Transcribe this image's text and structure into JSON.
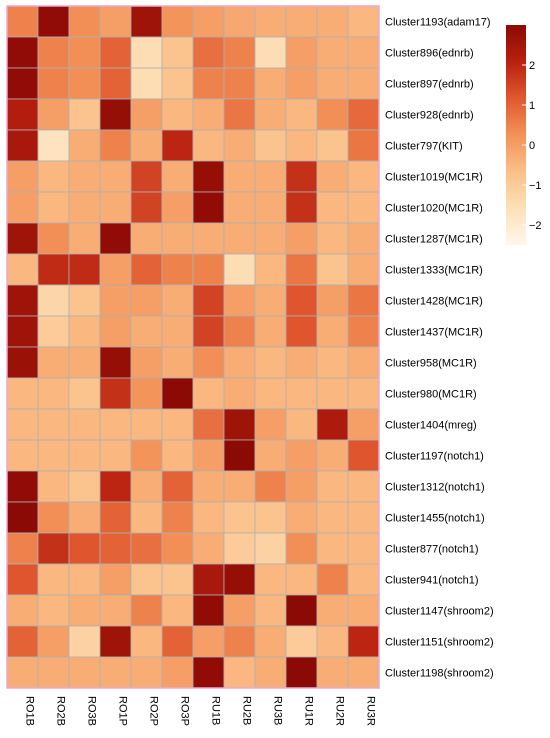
{
  "chart_data": {
    "type": "heatmap",
    "columns": [
      "RO1B",
      "RO2B",
      "RO3B",
      "RO1P",
      "RO2P",
      "RO3P",
      "RU1B",
      "RU2B",
      "RU3B",
      "RU1R",
      "RU2R",
      "RU3R"
    ],
    "rows": [
      "Cluster1193(adam17)",
      "Cluster896(ednrb)",
      "Cluster897(ednrb)",
      "Cluster928(ednrb)",
      "Cluster797(KIT)",
      "Cluster1019(MC1R)",
      "Cluster1020(MC1R)",
      "Cluster1287(MC1R)",
      "Cluster1333(MC1R)",
      "Cluster1428(MC1R)",
      "Cluster1437(MC1R)",
      "Cluster958(MC1R)",
      "Cluster980(MC1R)",
      "Cluster1404(mreg)",
      "Cluster1197(notch1)",
      "Cluster1312(notch1)",
      "Cluster1455(notch1)",
      "Cluster877(notch1)",
      "Cluster941(notch1)",
      "Cluster1147(shroom2)",
      "Cluster1151(shroom2)",
      "Cluster1198(shroom2)"
    ],
    "values": [
      [
        0.5,
        2.9,
        0.3,
        0.0,
        2.6,
        0.2,
        0.0,
        -0.2,
        -0.3,
        -0.3,
        -0.3,
        -0.5
      ],
      [
        2.9,
        0.5,
        0.3,
        1.0,
        -1.5,
        -0.8,
        0.8,
        0.5,
        -1.5,
        0.0,
        -0.3,
        -0.3
      ],
      [
        2.9,
        0.5,
        0.3,
        1.0,
        -1.5,
        -0.8,
        0.5,
        0.5,
        -0.3,
        0.0,
        -0.3,
        -0.3
      ],
      [
        2.2,
        0.0,
        -0.8,
        2.8,
        0.0,
        -0.5,
        -0.3,
        0.7,
        -0.3,
        -0.5,
        0.3,
        0.9
      ],
      [
        2.4,
        -1.7,
        -0.3,
        0.5,
        -0.3,
        2.0,
        -0.5,
        -0.3,
        -0.8,
        -0.5,
        -0.8,
        0.7
      ],
      [
        0.0,
        -0.5,
        -0.3,
        -0.3,
        1.5,
        -0.3,
        2.8,
        -0.3,
        -0.3,
        1.8,
        -0.3,
        -0.5
      ],
      [
        0.0,
        -0.5,
        -0.3,
        -0.3,
        1.5,
        0.0,
        2.9,
        -0.3,
        -0.3,
        1.8,
        -0.5,
        -0.5
      ],
      [
        2.6,
        0.3,
        -0.3,
        2.9,
        -0.3,
        -0.3,
        -0.3,
        -0.3,
        -0.3,
        0.0,
        -0.5,
        -0.3
      ],
      [
        -0.5,
        1.9,
        1.9,
        0.0,
        1.0,
        0.5,
        0.5,
        -1.5,
        -0.5,
        0.7,
        -0.8,
        -0.3
      ],
      [
        2.6,
        -1.3,
        -0.8,
        0.0,
        0.0,
        -0.3,
        1.5,
        0.0,
        -0.3,
        1.2,
        0.0,
        0.7
      ],
      [
        2.6,
        -1.0,
        -0.5,
        0.0,
        -0.3,
        -0.3,
        1.5,
        0.5,
        -0.3,
        1.2,
        -0.3,
        0.5
      ],
      [
        2.7,
        -0.3,
        -0.3,
        2.8,
        0.0,
        -0.3,
        0.3,
        -0.3,
        -0.5,
        -0.3,
        -0.5,
        -0.3
      ],
      [
        -0.5,
        -0.5,
        -0.8,
        1.8,
        0.2,
        3.0,
        -0.5,
        -0.3,
        -0.5,
        -0.5,
        -0.5,
        -0.5
      ],
      [
        -0.5,
        -0.5,
        -0.5,
        -0.5,
        -0.5,
        -0.5,
        0.8,
        2.6,
        0.0,
        -0.5,
        2.3,
        0.0
      ],
      [
        -0.5,
        -0.5,
        -0.5,
        -0.5,
        0.2,
        -0.5,
        0.0,
        3.0,
        -0.3,
        0.0,
        -0.3,
        1.2
      ],
      [
        2.9,
        -0.5,
        -0.8,
        2.0,
        -0.3,
        1.0,
        -0.3,
        -0.3,
        0.5,
        0.0,
        -0.5,
        -0.5
      ],
      [
        3.0,
        0.3,
        -0.3,
        1.0,
        -0.5,
        0.5,
        -0.5,
        -0.8,
        -0.8,
        -0.3,
        -0.5,
        -0.5
      ],
      [
        0.5,
        1.8,
        1.2,
        1.0,
        0.8,
        0.3,
        -0.3,
        -1.0,
        -1.2,
        0.3,
        -0.5,
        -0.5
      ],
      [
        1.2,
        -0.5,
        -0.5,
        0.0,
        -0.8,
        -0.8,
        2.4,
        2.8,
        -0.5,
        -0.5,
        0.5,
        -0.5
      ],
      [
        -0.3,
        -0.5,
        -0.3,
        -0.3,
        0.5,
        -0.5,
        2.9,
        0.0,
        -0.5,
        3.0,
        -0.3,
        -0.3
      ],
      [
        1.0,
        0.0,
        -1.2,
        2.6,
        -0.5,
        1.0,
        0.0,
        0.5,
        -0.3,
        -1.0,
        -0.5,
        2.0
      ],
      [
        -0.3,
        -0.3,
        -0.3,
        -0.3,
        -0.3,
        0.0,
        2.9,
        -0.5,
        -0.3,
        3.0,
        -0.3,
        -0.3
      ]
    ],
    "color_scale": {
      "min": -2.5,
      "max": 3.0,
      "colors": [
        "#fff7ec",
        "#fde0b8",
        "#fbbf88",
        "#f39258",
        "#e0582f",
        "#b8200f",
        "#8c0a05"
      ]
    },
    "legend": {
      "ticks": [
        "−2",
        "−1",
        "0",
        "1",
        "2"
      ],
      "tick_values": [
        -2,
        -1,
        0,
        1,
        2
      ]
    },
    "cell_border_color": "#b0b0b0",
    "frame_color": "#e8a8d0",
    "grid": true,
    "legend_position": "top-right"
  }
}
